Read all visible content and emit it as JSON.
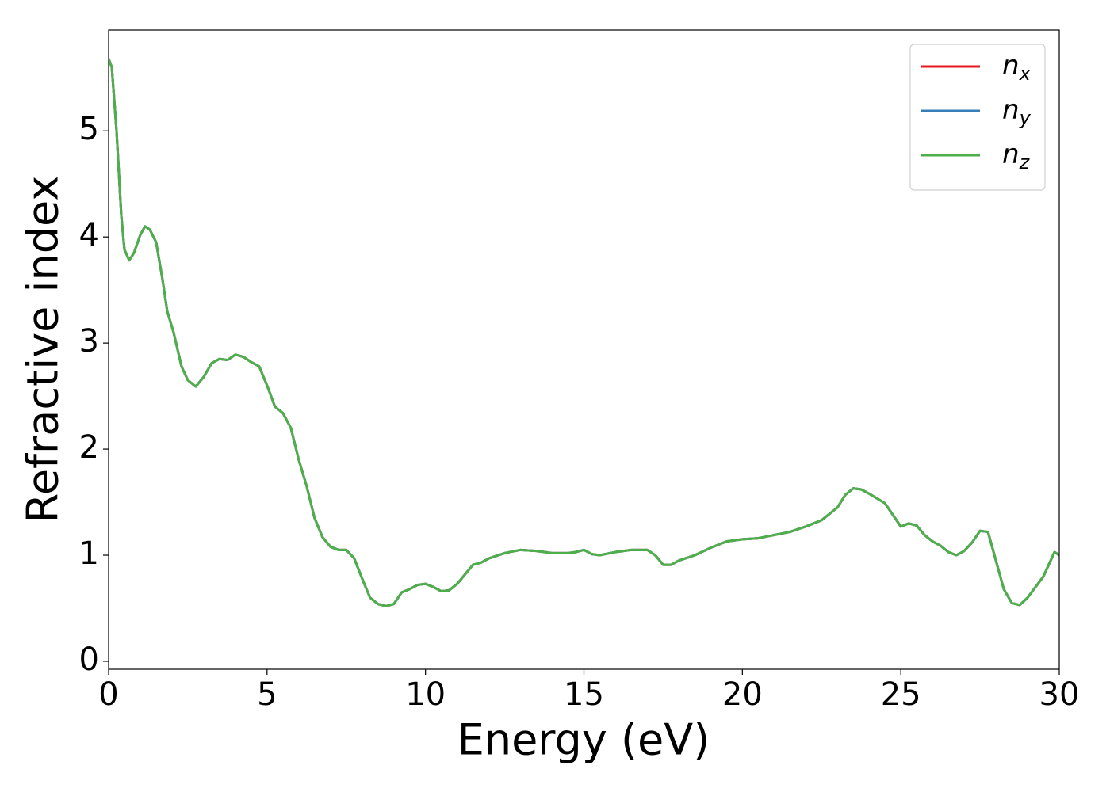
{
  "chart_data": {
    "type": "line",
    "xlabel": "Energy (eV)",
    "ylabel": "Refractive index",
    "x": [
      0,
      0.1,
      0.25,
      0.4,
      0.5,
      0.65,
      0.8,
      1.0,
      1.15,
      1.3,
      1.5,
      1.7,
      1.85,
      2.05,
      2.3,
      2.5,
      2.75,
      3.0,
      3.25,
      3.5,
      3.75,
      4.0,
      4.25,
      4.5,
      4.75,
      5.0,
      5.25,
      5.5,
      5.75,
      6.0,
      6.25,
      6.5,
      6.75,
      7.0,
      7.25,
      7.5,
      7.75,
      8.0,
      8.25,
      8.5,
      8.75,
      9.0,
      9.25,
      9.5,
      9.75,
      10.0,
      10.25,
      10.5,
      10.75,
      11.0,
      11.25,
      11.5,
      11.75,
      12.0,
      12.5,
      13.0,
      13.5,
      14.0,
      14.5,
      14.75,
      15.0,
      15.25,
      15.5,
      16.0,
      16.5,
      17.0,
      17.25,
      17.5,
      17.75,
      18.0,
      18.5,
      19.0,
      19.5,
      20.0,
      20.5,
      21.0,
      21.5,
      22.0,
      22.5,
      23.0,
      23.25,
      23.5,
      23.75,
      24.0,
      24.5,
      24.75,
      25.0,
      25.25,
      25.5,
      25.75,
      26.0,
      26.25,
      26.5,
      26.75,
      27.0,
      27.25,
      27.5,
      27.75,
      28.0,
      28.25,
      28.5,
      28.75,
      29.0,
      29.5,
      29.85,
      30.0
    ],
    "series": [
      {
        "name": "nx",
        "color": "#e41a1c",
        "values": [
          5.68,
          5.6,
          5.0,
          4.2,
          3.88,
          3.78,
          3.85,
          4.02,
          4.1,
          4.07,
          3.95,
          3.6,
          3.3,
          3.1,
          2.78,
          2.65,
          2.59,
          2.68,
          2.81,
          2.85,
          2.84,
          2.89,
          2.87,
          2.82,
          2.78,
          2.6,
          2.4,
          2.34,
          2.2,
          1.9,
          1.65,
          1.35,
          1.17,
          1.08,
          1.05,
          1.05,
          0.97,
          0.78,
          0.6,
          0.54,
          0.52,
          0.54,
          0.65,
          0.68,
          0.72,
          0.73,
          0.7,
          0.66,
          0.67,
          0.73,
          0.82,
          0.91,
          0.93,
          0.97,
          1.02,
          1.05,
          1.04,
          1.02,
          1.02,
          1.03,
          1.05,
          1.01,
          1.0,
          1.03,
          1.05,
          1.05,
          1.0,
          0.91,
          0.91,
          0.95,
          1.0,
          1.07,
          1.13,
          1.15,
          1.16,
          1.19,
          1.22,
          1.27,
          1.33,
          1.45,
          1.57,
          1.63,
          1.62,
          1.58,
          1.49,
          1.38,
          1.27,
          1.3,
          1.28,
          1.19,
          1.13,
          1.09,
          1.03,
          1.0,
          1.04,
          1.12,
          1.23,
          1.22,
          0.95,
          0.68,
          0.55,
          0.53,
          0.6,
          0.8,
          1.03,
          1.0
        ]
      },
      {
        "name": "ny",
        "color": "#377eb8",
        "values": [
          5.68,
          5.6,
          5.0,
          4.2,
          3.88,
          3.78,
          3.85,
          4.02,
          4.1,
          4.07,
          3.95,
          3.6,
          3.3,
          3.1,
          2.78,
          2.65,
          2.59,
          2.68,
          2.81,
          2.85,
          2.84,
          2.89,
          2.87,
          2.82,
          2.78,
          2.6,
          2.4,
          2.34,
          2.2,
          1.9,
          1.65,
          1.35,
          1.17,
          1.08,
          1.05,
          1.05,
          0.97,
          0.78,
          0.6,
          0.54,
          0.52,
          0.54,
          0.65,
          0.68,
          0.72,
          0.73,
          0.7,
          0.66,
          0.67,
          0.73,
          0.82,
          0.91,
          0.93,
          0.97,
          1.02,
          1.05,
          1.04,
          1.02,
          1.02,
          1.03,
          1.05,
          1.01,
          1.0,
          1.03,
          1.05,
          1.05,
          1.0,
          0.91,
          0.91,
          0.95,
          1.0,
          1.07,
          1.13,
          1.15,
          1.16,
          1.19,
          1.22,
          1.27,
          1.33,
          1.45,
          1.57,
          1.63,
          1.62,
          1.58,
          1.49,
          1.38,
          1.27,
          1.3,
          1.28,
          1.19,
          1.13,
          1.09,
          1.03,
          1.0,
          1.04,
          1.12,
          1.23,
          1.22,
          0.95,
          0.68,
          0.55,
          0.53,
          0.6,
          0.8,
          1.03,
          1.0
        ]
      },
      {
        "name": "nz",
        "color": "#4daf4a",
        "values": [
          5.68,
          5.6,
          5.0,
          4.2,
          3.88,
          3.78,
          3.85,
          4.02,
          4.1,
          4.07,
          3.95,
          3.6,
          3.3,
          3.1,
          2.78,
          2.65,
          2.59,
          2.68,
          2.81,
          2.85,
          2.84,
          2.89,
          2.87,
          2.82,
          2.78,
          2.6,
          2.4,
          2.34,
          2.2,
          1.9,
          1.65,
          1.35,
          1.17,
          1.08,
          1.05,
          1.05,
          0.97,
          0.78,
          0.6,
          0.54,
          0.52,
          0.54,
          0.65,
          0.68,
          0.72,
          0.73,
          0.7,
          0.66,
          0.67,
          0.73,
          0.82,
          0.91,
          0.93,
          0.97,
          1.02,
          1.05,
          1.04,
          1.02,
          1.02,
          1.03,
          1.05,
          1.01,
          1.0,
          1.03,
          1.05,
          1.05,
          1.0,
          0.91,
          0.91,
          0.95,
          1.0,
          1.07,
          1.13,
          1.15,
          1.16,
          1.19,
          1.22,
          1.27,
          1.33,
          1.45,
          1.57,
          1.63,
          1.62,
          1.58,
          1.49,
          1.38,
          1.27,
          1.3,
          1.28,
          1.19,
          1.13,
          1.09,
          1.03,
          1.0,
          1.04,
          1.12,
          1.23,
          1.22,
          0.95,
          0.68,
          0.55,
          0.53,
          0.6,
          0.8,
          1.03,
          1.0
        ]
      }
    ],
    "xlim": [
      0,
      30
    ],
    "xticks": [
      0,
      5,
      10,
      15,
      20,
      25,
      30
    ],
    "ylim": [
      -0.075,
      5.95
    ],
    "yticks": [
      0,
      1,
      2,
      3,
      4,
      5
    ],
    "legend": "upper right",
    "grid": false
  }
}
